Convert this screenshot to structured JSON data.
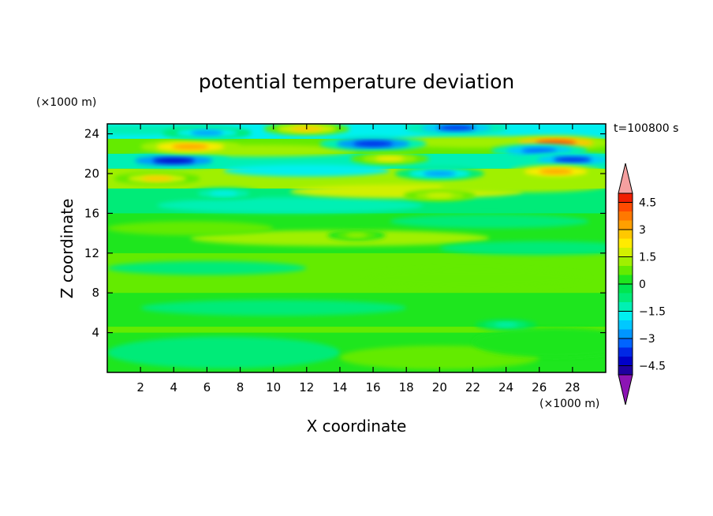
{
  "chart_data": {
    "type": "heatmap",
    "title": "potential temperature deviation",
    "xlabel": "X coordinate",
    "ylabel": "Z coordinate",
    "x_unit": "(×1000 m)",
    "y_unit": "(×1000 m)",
    "time_label": "t=100800 s",
    "xlim": [
      0,
      30
    ],
    "ylim": [
      0,
      25
    ],
    "x_ticks": [
      "2",
      "4",
      "6",
      "8",
      "10",
      "12",
      "14",
      "16",
      "18",
      "20",
      "22",
      "24",
      "26",
      "28"
    ],
    "y_ticks": [
      "4",
      "8",
      "12",
      "16",
      "20",
      "24"
    ],
    "colorbar": {
      "levels": [
        -5,
        -4.5,
        -4,
        -3.5,
        -3,
        -2.5,
        -2,
        -1.5,
        -1,
        -0.5,
        0,
        0.5,
        1,
        1.5,
        2,
        2.5,
        3,
        3.5,
        4,
        4.5,
        5
      ],
      "tick_labels": [
        "4.5",
        "3",
        "1.5",
        "0",
        "−1.5",
        "−3",
        "−4.5"
      ],
      "tick_values": [
        4.5,
        3,
        1.5,
        0,
        -1.5,
        -3,
        -4.5
      ],
      "colors": [
        "#1e00a0",
        "#0000c8",
        "#0028e6",
        "#0064ff",
        "#0096ff",
        "#00c8ff",
        "#00f0f0",
        "#00f0b4",
        "#00eb78",
        "#00e650",
        "#1ee61e",
        "#64eb00",
        "#a0f000",
        "#d2f000",
        "#ffeb00",
        "#ffc800",
        "#ffa000",
        "#ff7800",
        "#ff4b00",
        "#f01e00"
      ],
      "under_color": "#8c14b4",
      "over_color": "#f5a0a0"
    },
    "features": [
      {
        "x": 4,
        "z": 21.3,
        "value": -4.2
      },
      {
        "x": 5,
        "z": 22.7,
        "value": 3.4
      },
      {
        "x": 6,
        "z": 24.1,
        "value": -2.8
      },
      {
        "x": 12,
        "z": 24.5,
        "value": 2.6
      },
      {
        "x": 16,
        "z": 23.0,
        "value": -3.8
      },
      {
        "x": 17,
        "z": 21.5,
        "value": 2.2
      },
      {
        "x": 20,
        "z": 20.0,
        "value": -2.8
      },
      {
        "x": 21,
        "z": 24.6,
        "value": -3.6
      },
      {
        "x": 27,
        "z": 23.1,
        "value": 4.0
      },
      {
        "x": 26,
        "z": 22.3,
        "value": -3.2
      },
      {
        "x": 28,
        "z": 21.4,
        "value": -3.6
      },
      {
        "x": 27,
        "z": 20.2,
        "value": 3.0
      },
      {
        "x": 3,
        "z": 19.5,
        "value": 2.6
      },
      {
        "x": 7,
        "z": 18.0,
        "value": -2.0
      },
      {
        "x": 20,
        "z": 17.8,
        "value": 1.8
      },
      {
        "x": 15,
        "z": 13.8,
        "value": 1.0
      },
      {
        "x": 24,
        "z": 4.8,
        "value": -1.2
      }
    ]
  }
}
